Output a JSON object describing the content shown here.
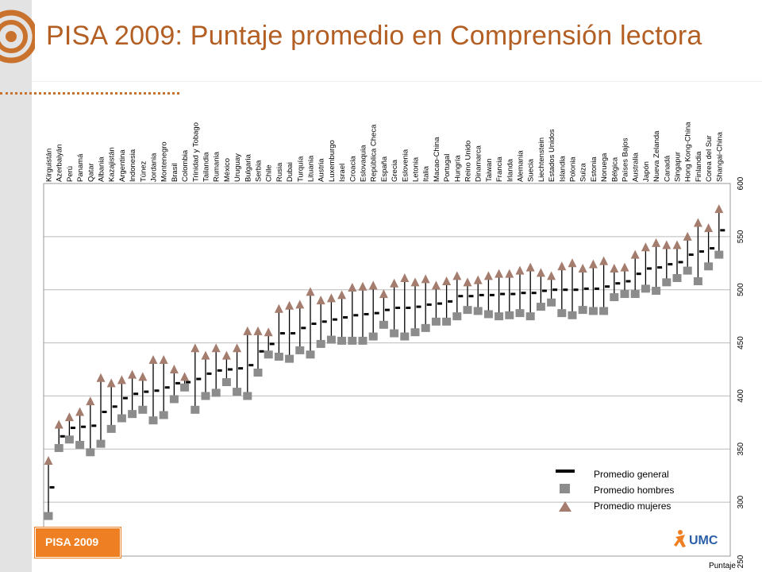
{
  "title": "PISA 2009: Puntaje promedio en Comprensión lectora",
  "badge": "PISA 2009",
  "logo_text": "UMC",
  "colors": {
    "title": "#b35f24",
    "men": "#8c8c8c",
    "women": "#a57d6f",
    "mean": "#000000",
    "badge": "#ee7f22",
    "accent": "#c9722e",
    "logo_blue": "#2a5fa8"
  },
  "chart_data": {
    "type": "scatter",
    "title": "",
    "xlabel": "",
    "ylabel": "Puntaje",
    "ylim": [
      250,
      600
    ],
    "yticks": [
      250,
      300,
      350,
      400,
      450,
      500,
      550,
      600
    ],
    "grid": true,
    "legend_position": "bottom-right",
    "categories": [
      "Kirguistán",
      "Azerbaiyán",
      "Perú",
      "Panamá",
      "Qatar",
      "Albania",
      "Kazajistán",
      "Argentina",
      "Indonesia",
      "Túnez",
      "Jordania",
      "Montenegro",
      "Brasil",
      "Colombia",
      "Trinidad y Tobago",
      "Tailandia",
      "Rumania",
      "México",
      "Uruguay",
      "Bulgaria",
      "Serbia",
      "Chile",
      "Rusia",
      "Dubai",
      "Turquía",
      "Lituania",
      "Austria",
      "Luxemburgo",
      "Israel",
      "Croacia",
      "Eslovaquia",
      "República Checa",
      "España",
      "Grecia",
      "Eslovenia",
      "Letonia",
      "Italia",
      "Macao-China",
      "Portugal",
      "Hungría",
      "Reino Unido",
      "Dinamarca",
      "Taiwan",
      "Francia",
      "Irlanda",
      "Alemania",
      "Suecia",
      "Liechtenstein",
      "Estados Unidos",
      "Islandia",
      "Polonia",
      "Suiza",
      "Estonia",
      "Noruega",
      "Bélgica",
      "Países Bajos",
      "Australia",
      "Japón",
      "Nueva Zelanda",
      "Canadá",
      "Singapur",
      "Hong Kong-China",
      "Finlandia",
      "Corea del Sur",
      "Shangai-China"
    ],
    "series": [
      {
        "name": "Promedio general",
        "marker": "dash",
        "values": [
          314,
          362,
          370,
          371,
          372,
          385,
          390,
          398,
          402,
          404,
          405,
          408,
          412,
          413,
          416,
          421,
          424,
          425,
          426,
          429,
          442,
          449,
          459,
          459,
          464,
          468,
          470,
          472,
          474,
          476,
          477,
          478,
          481,
          483,
          483,
          484,
          486,
          487,
          489,
          494,
          494,
          495,
          495,
          496,
          496,
          497,
          497,
          499,
          500,
          500,
          500,
          501,
          501,
          503,
          506,
          508,
          515,
          520,
          521,
          524,
          526,
          533,
          536,
          539,
          556
        ]
      },
      {
        "name": "Promedio hombres",
        "marker": "square",
        "values": [
          287,
          351,
          359,
          354,
          347,
          355,
          369,
          379,
          383,
          387,
          377,
          382,
          397,
          408,
          387,
          400,
          403,
          413,
          404,
          400,
          422,
          439,
          437,
          435,
          443,
          439,
          449,
          453,
          452,
          452,
          452,
          456,
          467,
          459,
          456,
          460,
          464,
          470,
          470,
          475,
          481,
          480,
          477,
          475,
          476,
          478,
          475,
          484,
          488,
          478,
          476,
          481,
          480,
          480,
          493,
          496,
          496,
          501,
          499,
          507,
          511,
          518,
          508,
          522,
          533
        ]
      },
      {
        "name": "Promedio mujeres",
        "marker": "triangle",
        "values": [
          339,
          373,
          380,
          385,
          395,
          417,
          412,
          415,
          420,
          418,
          434,
          434,
          425,
          418,
          445,
          438,
          445,
          438,
          445,
          461,
          461,
          460,
          482,
          485,
          486,
          498,
          490,
          492,
          495,
          502,
          503,
          504,
          496,
          506,
          511,
          507,
          510,
          504,
          508,
          513,
          507,
          509,
          513,
          515,
          515,
          518,
          521,
          516,
          513,
          522,
          525,
          520,
          524,
          527,
          520,
          521,
          533,
          540,
          544,
          542,
          542,
          550,
          563,
          558,
          576
        ]
      }
    ],
    "legend": [
      "Promedio general",
      "Promedio hombres",
      "Promedio mujeres"
    ]
  }
}
